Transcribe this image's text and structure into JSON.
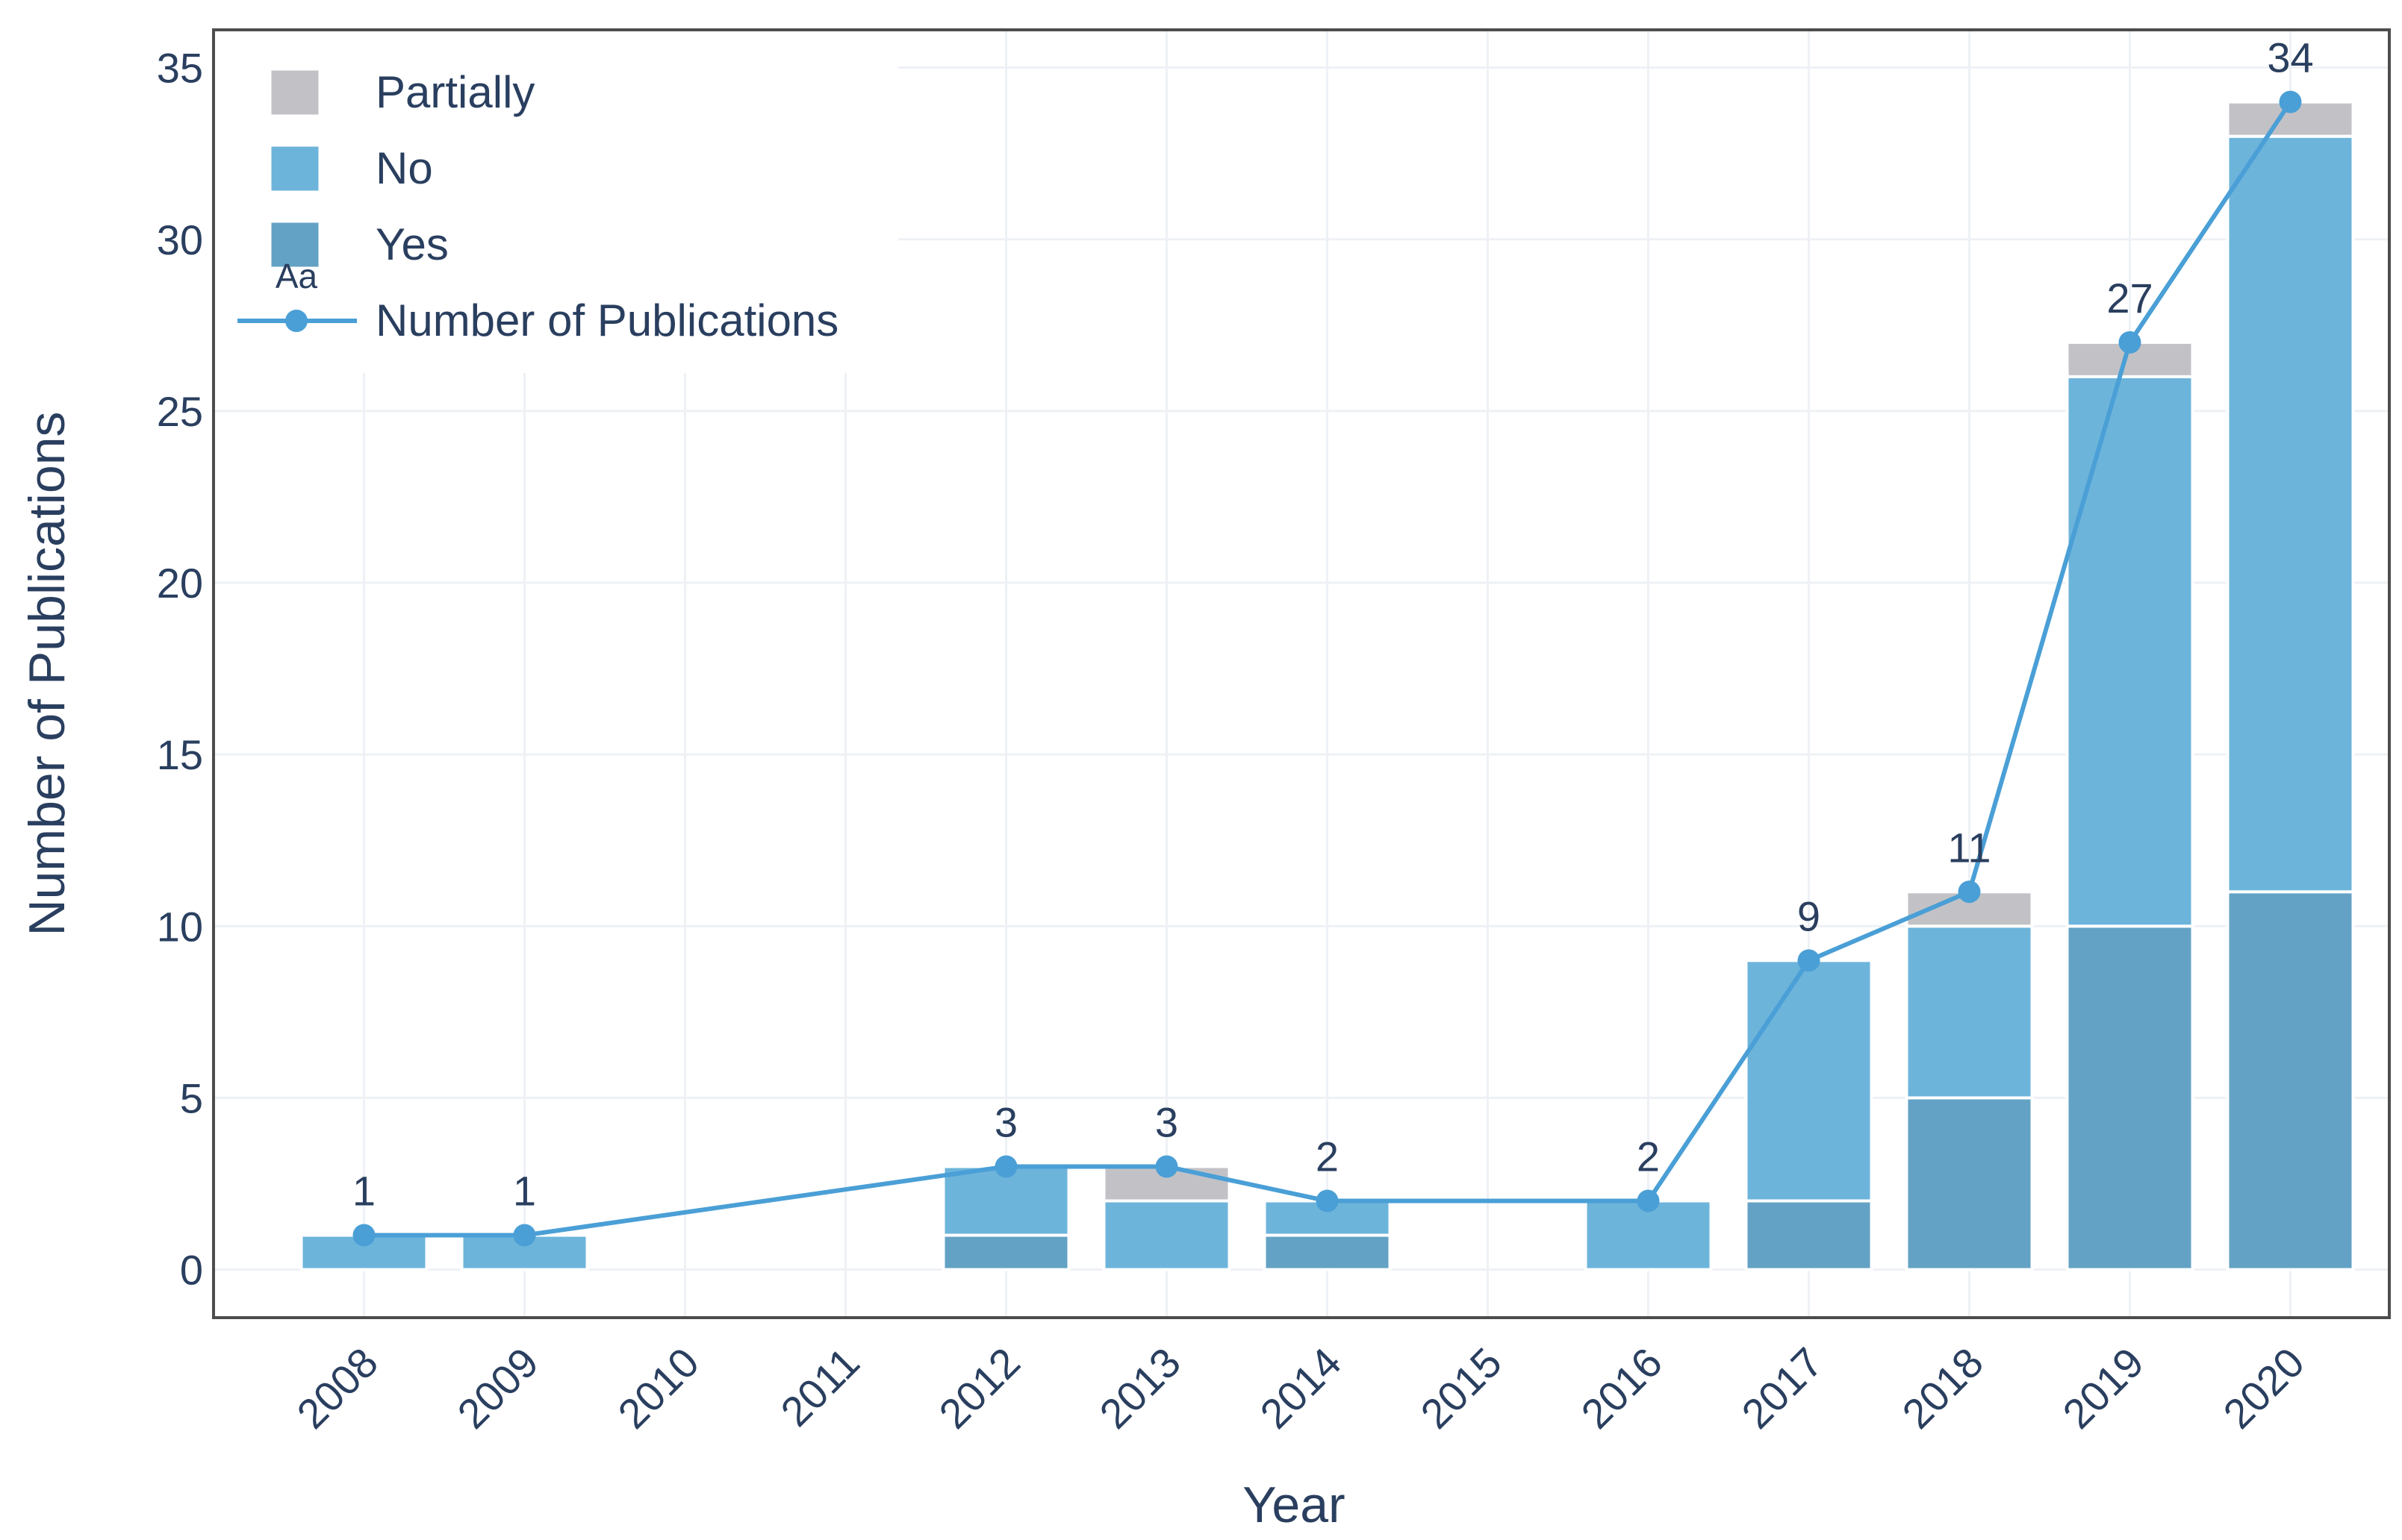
{
  "chart_data": {
    "type": "bar",
    "stacked": true,
    "title": "",
    "xlabel": "Year",
    "ylabel": "Number of Publications",
    "categories": [
      "2008",
      "2009",
      "2010",
      "2011",
      "2012",
      "2013",
      "2014",
      "2015",
      "2016",
      "2017",
      "2018",
      "2019",
      "2020"
    ],
    "series": [
      {
        "name": "Yes",
        "color": "#63a2c4",
        "values": [
          0,
          0,
          0,
          0,
          1,
          0,
          1,
          0,
          0,
          2,
          5,
          10,
          11
        ]
      },
      {
        "name": "No",
        "color": "#6db4db",
        "values": [
          1,
          1,
          0,
          0,
          2,
          2,
          1,
          0,
          2,
          7,
          5,
          16,
          22
        ]
      },
      {
        "name": "Partially",
        "color": "#c2c2c6",
        "values": [
          0,
          0,
          0,
          0,
          0,
          1,
          0,
          0,
          0,
          0,
          1,
          1,
          1
        ]
      }
    ],
    "line": {
      "name": "Number of Publications",
      "type": "line",
      "color": "#4a9fd6",
      "points": [
        {
          "x": "2008",
          "y": 1,
          "label": "1"
        },
        {
          "x": "2009",
          "y": 1,
          "label": "1"
        },
        {
          "x": "2012",
          "y": 3,
          "label": "3"
        },
        {
          "x": "2013",
          "y": 3,
          "label": "3"
        },
        {
          "x": "2014",
          "y": 2,
          "label": "2"
        },
        {
          "x": "2016",
          "y": 2,
          "label": "2"
        },
        {
          "x": "2017",
          "y": 9,
          "label": "9"
        },
        {
          "x": "2018",
          "y": 11,
          "label": "11"
        },
        {
          "x": "2019",
          "y": 27,
          "label": "27"
        },
        {
          "x": "2020",
          "y": 34,
          "label": "34"
        }
      ]
    },
    "yticks": [
      0,
      5,
      10,
      15,
      20,
      25,
      30,
      35
    ],
    "ylim": [
      -1.4,
      36.1
    ],
    "grid": true,
    "legend": {
      "placement": "top-left",
      "items": [
        {
          "label": "Partially",
          "kind": "box",
          "color": "#c2c2c6"
        },
        {
          "label": "No",
          "kind": "box",
          "color": "#6db4db"
        },
        {
          "label": "Yes",
          "kind": "box",
          "color": "#63a2c4"
        },
        {
          "label": "Number of Publications",
          "kind": "line",
          "color": "#4a9fd6"
        }
      ],
      "glyph_text": "Aa"
    },
    "colors": {
      "frame": "#4d4d4d",
      "grid": "#eef1f5",
      "text": "#2a3f5f",
      "bar_outline": "#ffffff"
    }
  }
}
